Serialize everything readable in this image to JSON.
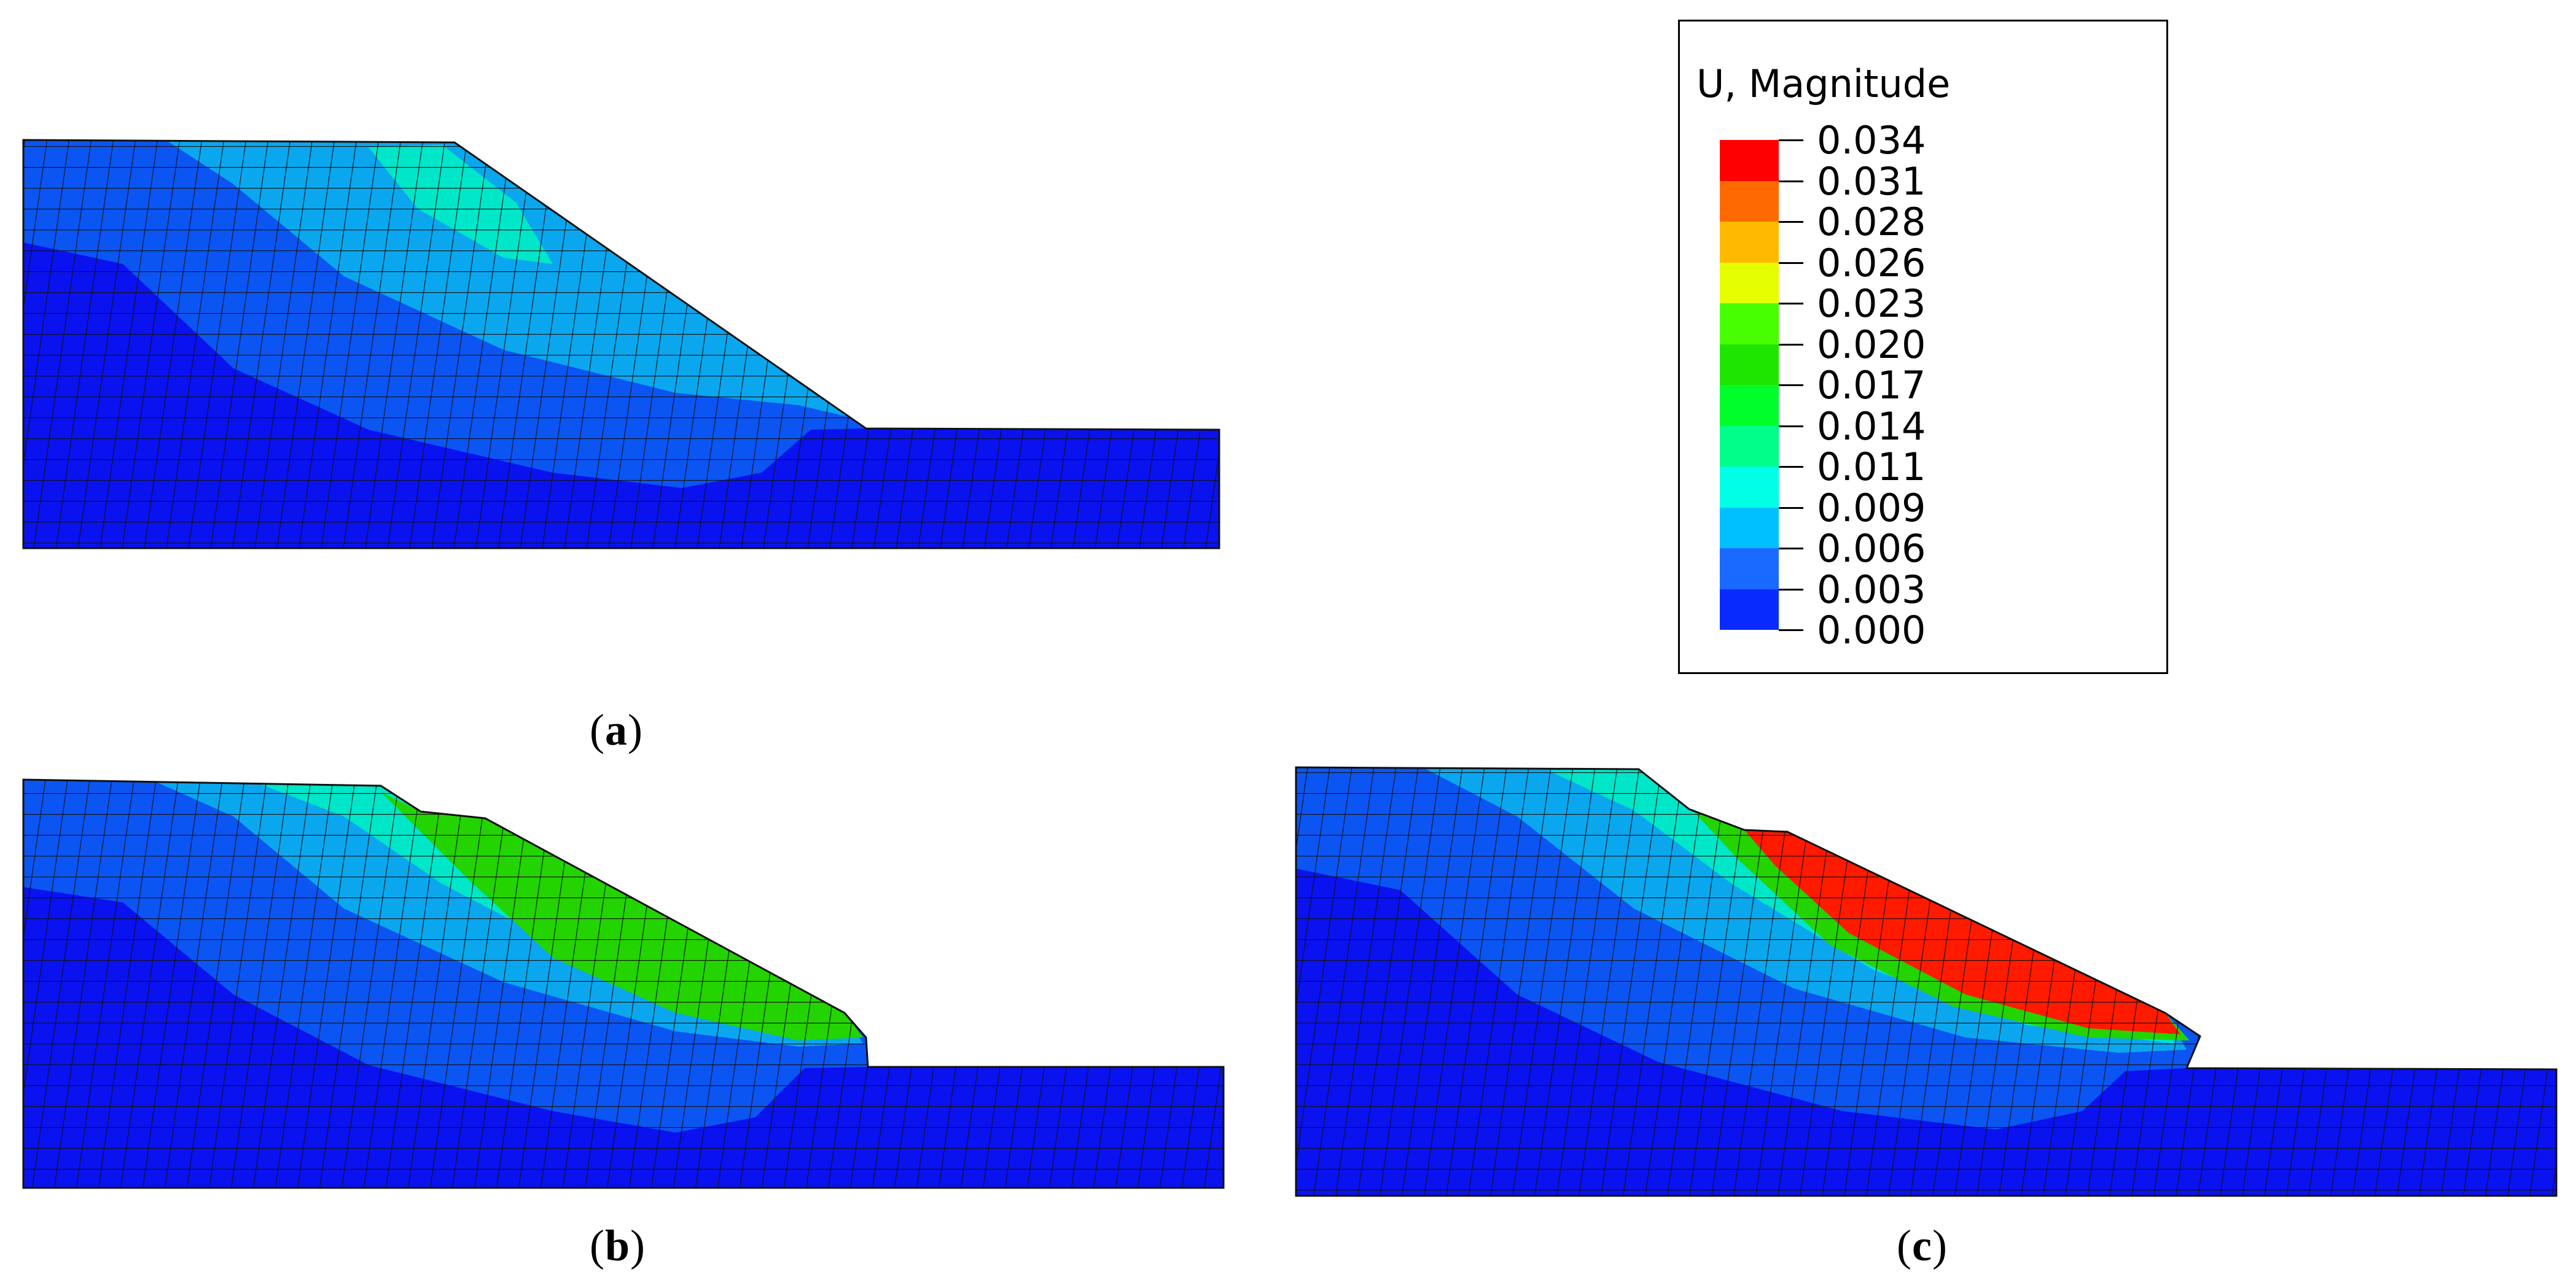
{
  "legend": {
    "title": "U, Magnitude",
    "labels": [
      "0.034",
      "0.031",
      "0.028",
      "0.026",
      "0.023",
      "0.020",
      "0.017",
      "0.014",
      "0.011",
      "0.009",
      "0.006",
      "0.003",
      "0.000"
    ],
    "colors": [
      "#ff0000",
      "#ff6a00",
      "#ffba00",
      "#e6ff00",
      "#47ff00",
      "#1fe600",
      "#00ff2a",
      "#00ff8a",
      "#00ffe6",
      "#00bfff",
      "#1a6aff",
      "#0a2bff"
    ]
  },
  "panels": [
    {
      "id": "a",
      "open": "(",
      "letter": "a",
      "close": ")"
    },
    {
      "id": "b",
      "open": "(",
      "letter": "b",
      "close": ")"
    },
    {
      "id": "c",
      "open": "(",
      "letter": "c",
      "close": ")"
    }
  ],
  "colors": {
    "base": "#0a12f0",
    "mid": "#0b55f2",
    "light": "#0aa7ee",
    "cyan": "#00e6c8",
    "green": "#23d400",
    "red": "#ff1a00",
    "mesh": "#111111"
  }
}
